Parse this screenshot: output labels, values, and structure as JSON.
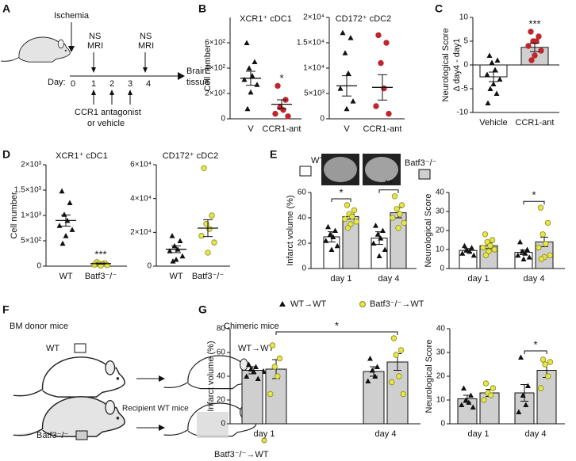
{
  "panel_letters": [
    "A",
    "B",
    "C",
    "D",
    "E",
    "F",
    "G"
  ],
  "diagram_a": {
    "ischemia": "Ischemia",
    "assessment": [
      "NS",
      "MRI"
    ],
    "day_label": "Day:",
    "days": [
      0,
      1,
      2,
      3,
      4
    ],
    "endpoint": [
      "Brain",
      "tissue"
    ],
    "treatment": [
      "CCR1 antagonist",
      "or vehicle"
    ]
  },
  "diagram_f": {
    "donor_title": "BM donor mice",
    "donors": [
      "WT",
      "Batf3⁻/⁻"
    ],
    "recipient": "Recipient WT mice",
    "chimera_title": "Chimeric mice",
    "chimeras": [
      "WT→WT",
      "Batf3⁻/⁻→WT"
    ]
  },
  "chart_data": [
    {
      "type": "dotplot",
      "title": "XCR1⁺ cDC1",
      "ylabel": [
        "Cell number"
      ],
      "ylim": [
        0,
        800
      ],
      "yticks": [
        0,
        {
          "value": 200,
          "label": "2×10²"
        },
        {
          "value": 400,
          "label": "4×10²"
        },
        {
          "value": 600,
          "label": "6×10²"
        }
      ],
      "groups": [
        {
          "name": "V",
          "mean": 320,
          "error": 55,
          "marker": "triangle",
          "color": "#111111",
          "points": [
            600,
            450,
            400,
            340,
            310,
            270,
            210,
            80
          ]
        },
        {
          "name": "CCR1-ant",
          "mean": 115,
          "error": 35,
          "marker": "circle",
          "color": "#c0262d",
          "significance": "*",
          "points": [
            260,
            150,
            90,
            70,
            40,
            20
          ]
        }
      ]
    },
    {
      "type": "dotplot",
      "title": "CD172⁺ cDC2",
      "ylim": [
        0,
        20000
      ],
      "yticks": [
        0,
        {
          "value": 5000,
          "label": "5×10³"
        },
        {
          "value": 10000,
          "label": "1×10⁴"
        },
        {
          "value": 15000,
          "label": "1.5×10⁴"
        },
        {
          "value": 20000,
          "label": "2×10⁴"
        }
      ],
      "groups": [
        {
          "name": "V",
          "mean": 6500,
          "error": 2000,
          "marker": "triangle",
          "color": "#111111",
          "points": [
            17000,
            16000,
            13000,
            9000,
            6000,
            3500,
            2000
          ]
        },
        {
          "name": "CCR1-ant",
          "mean": 6200,
          "error": 2500,
          "marker": "circle",
          "color": "#c0262d",
          "points": [
            16500,
            15000,
            11000,
            6000,
            2500,
            1000
          ]
        }
      ]
    },
    {
      "type": "bar",
      "ylabel": [
        "Neurological Score",
        "Δ day4 - day1"
      ],
      "ylim": [
        -10,
        10
      ],
      "yticks": [
        -10,
        -5,
        0,
        5,
        10
      ],
      "groups": [
        {
          "name": "Vehicle",
          "mean": -2.5,
          "error": 1,
          "marker": "triangle",
          "color": "#111111",
          "bar_color": "#ffffff",
          "points": [
            2,
            1,
            0.5,
            -1,
            -2,
            -3,
            -4,
            -5,
            -6,
            -8
          ]
        },
        {
          "name": "CCR1-ant",
          "mean": 3.7,
          "error": 0.9,
          "marker": "circle",
          "color": "#c0262d",
          "bar_color": "#cfcfcf",
          "significance": "***",
          "points": [
            7,
            6,
            5,
            5,
            4,
            3,
            2,
            1
          ]
        }
      ]
    },
    {
      "type": "dotplot",
      "title": "XCR1⁺ cDC1",
      "ylabel": [
        "Cell number"
      ],
      "ylim": [
        0,
        2000
      ],
      "yticks": [
        0,
        {
          "value": 500,
          "label": "5×10²"
        },
        {
          "value": 1000,
          "label": "1×10³"
        },
        {
          "value": 1500,
          "label": "1.5×10³"
        },
        {
          "value": 2000,
          "label": "2×10³"
        }
      ],
      "groups": [
        {
          "name": "WT",
          "mean": 900,
          "error": 110,
          "marker": "triangle",
          "color": "#111111",
          "points": [
            1480,
            1250,
            1020,
            900,
            800,
            720,
            600,
            450
          ]
        },
        {
          "name": "Batf3⁻/⁻",
          "mean": 50,
          "error": 10,
          "marker": "circle",
          "color": "#e6e64a",
          "significance": "***",
          "points": [
            80,
            60,
            50,
            40,
            30,
            20,
            10
          ]
        }
      ]
    },
    {
      "type": "dotplot",
      "title": "CD172⁺ cDC2",
      "ylim": [
        0,
        60000
      ],
      "yticks": [
        0,
        {
          "value": 20000,
          "label": "2×10⁴"
        },
        {
          "value": 40000,
          "label": "4×10⁴"
        },
        {
          "value": 60000,
          "label": "6×10⁴"
        }
      ],
      "groups": [
        {
          "name": "WT",
          "mean": 10000,
          "error": 2000,
          "marker": "triangle",
          "color": "#111111",
          "points": [
            18000,
            15000,
            12000,
            10000,
            9000,
            6000,
            4000,
            3000
          ]
        },
        {
          "name": "Batf3⁻/⁻",
          "mean": 22500,
          "error": 5000,
          "marker": "circle",
          "color": "#e6e64a",
          "points": [
            58000,
            30000,
            25000,
            22000,
            18000,
            14000,
            8000
          ]
        }
      ]
    },
    {
      "type": "grouped_bar",
      "ylabel": [
        "Infarct volume (%)"
      ],
      "ylim": [
        0,
        60
      ],
      "yticks": [
        0,
        20,
        40,
        60
      ],
      "categories": [
        "day 1",
        "day 4"
      ],
      "series": [
        {
          "name": "WT",
          "color": "#ffffff",
          "point_color": "#111111",
          "marker": "triangle",
          "values": [
            25,
            24
          ],
          "errors": [
            4,
            5
          ],
          "points": [
            [
              33,
              30,
              27,
              25,
              22,
              18,
              15
            ],
            [
              34,
              30,
              27,
              24,
              20,
              15,
              10
            ]
          ]
        },
        {
          "name": "Batf3⁻/⁻",
          "color": "#cfcfcf",
          "point_color": "#e6e64a",
          "marker": "circle",
          "values": [
            41,
            44
          ],
          "errors": [
            2,
            4
          ],
          "points": [
            [
              50,
              46,
              43,
              41,
              39,
              37,
              35,
              32
            ],
            [
              57,
              50,
              47,
              43,
              40,
              36,
              32
            ]
          ]
        }
      ],
      "brackets": [
        {
          "label": "*",
          "from": [
            0,
            0
          ],
          "to": [
            1,
            0
          ]
        },
        {
          "label": "**",
          "from": [
            0,
            1
          ],
          "to": [
            1,
            1
          ]
        }
      ]
    },
    {
      "type": "grouped_bar",
      "ylabel": [
        "Neurological Score"
      ],
      "ylim": [
        0,
        40
      ],
      "yticks": [
        0,
        10,
        20,
        30,
        40
      ],
      "categories": [
        "day 1",
        "day 4"
      ],
      "series": [
        {
          "color": "#ffffff",
          "point_color": "#111111",
          "marker": "triangle",
          "values": [
            9.5,
            8.5
          ],
          "errors": [
            1,
            1.2
          ],
          "points": [
            [
              12,
              11,
              10,
              9,
              8,
              7
            ],
            [
              14,
              10,
              9,
              8,
              7,
              6,
              5
            ]
          ]
        },
        {
          "color": "#cfcfcf",
          "point_color": "#e6e64a",
          "marker": "circle",
          "values": [
            12,
            14
          ],
          "errors": [
            1.5,
            2.5
          ],
          "points": [
            [
              18,
              15,
              14,
              12,
              11,
              10,
              9,
              7
            ],
            [
              32,
              24,
              18,
              13,
              11,
              7,
              6,
              5
            ]
          ]
        }
      ],
      "brackets": [
        {
          "label": "*",
          "from": [
            0,
            1
          ],
          "to": [
            1,
            1
          ]
        }
      ]
    },
    {
      "type": "grouped_bar",
      "ylabel": [
        "Infarct volume (%)"
      ],
      "ylim": [
        0,
        80
      ],
      "yticks": [
        0,
        20,
        40,
        60,
        80
      ],
      "categories": [
        "day 1",
        "day 4"
      ],
      "series": [
        {
          "name": "WT→WT",
          "color": "#cfcfcf",
          "point_color": "#111111",
          "marker": "triangle",
          "values": [
            45,
            44
          ],
          "errors": [
            3,
            4
          ],
          "points": [
            [
              50,
              48,
              46,
              44,
              40,
              38
            ],
            [
              55,
              48,
              45,
              40,
              36
            ]
          ]
        },
        {
          "name": "Batf3⁻/⁻→WT",
          "color": "#cfcfcf",
          "point_color": "#e6e64a",
          "marker": "circle",
          "values": [
            46,
            52
          ],
          "errors": [
            8,
            7
          ],
          "points": [
            [
              66,
              55,
              48,
              40,
              25
            ],
            [
              72,
              62,
              58,
              40,
              35,
              25
            ]
          ]
        }
      ],
      "brackets": [
        {
          "label": "*",
          "from": [
            1,
            0
          ],
          "to": [
            1,
            1
          ]
        }
      ]
    },
    {
      "type": "grouped_bar",
      "ylabel": [
        "Neurological Score"
      ],
      "ylim": [
        0,
        40
      ],
      "yticks": [
        0,
        10,
        20,
        30,
        40
      ],
      "categories": [
        "day 1",
        "day 4"
      ],
      "series": [
        {
          "color": "#cfcfcf",
          "point_color": "#111111",
          "marker": "triangle",
          "values": [
            10.5,
            13
          ],
          "errors": [
            1.5,
            3.5
          ],
          "points": [
            [
              15,
              12,
              10,
              9,
              8,
              7
            ],
            [
              28,
              16,
              12,
              8,
              5
            ]
          ]
        },
        {
          "color": "#cfcfcf",
          "point_color": "#e6e64a",
          "marker": "circle",
          "values": [
            13,
            22.5
          ],
          "errors": [
            1.5,
            3
          ],
          "points": [
            [
              17,
              15,
              13,
              12,
              10
            ],
            [
              27,
              26,
              25,
              20,
              15
            ]
          ]
        }
      ],
      "brackets": [
        {
          "label": "*",
          "from": [
            0,
            1
          ],
          "to": [
            1,
            1
          ]
        }
      ]
    }
  ]
}
